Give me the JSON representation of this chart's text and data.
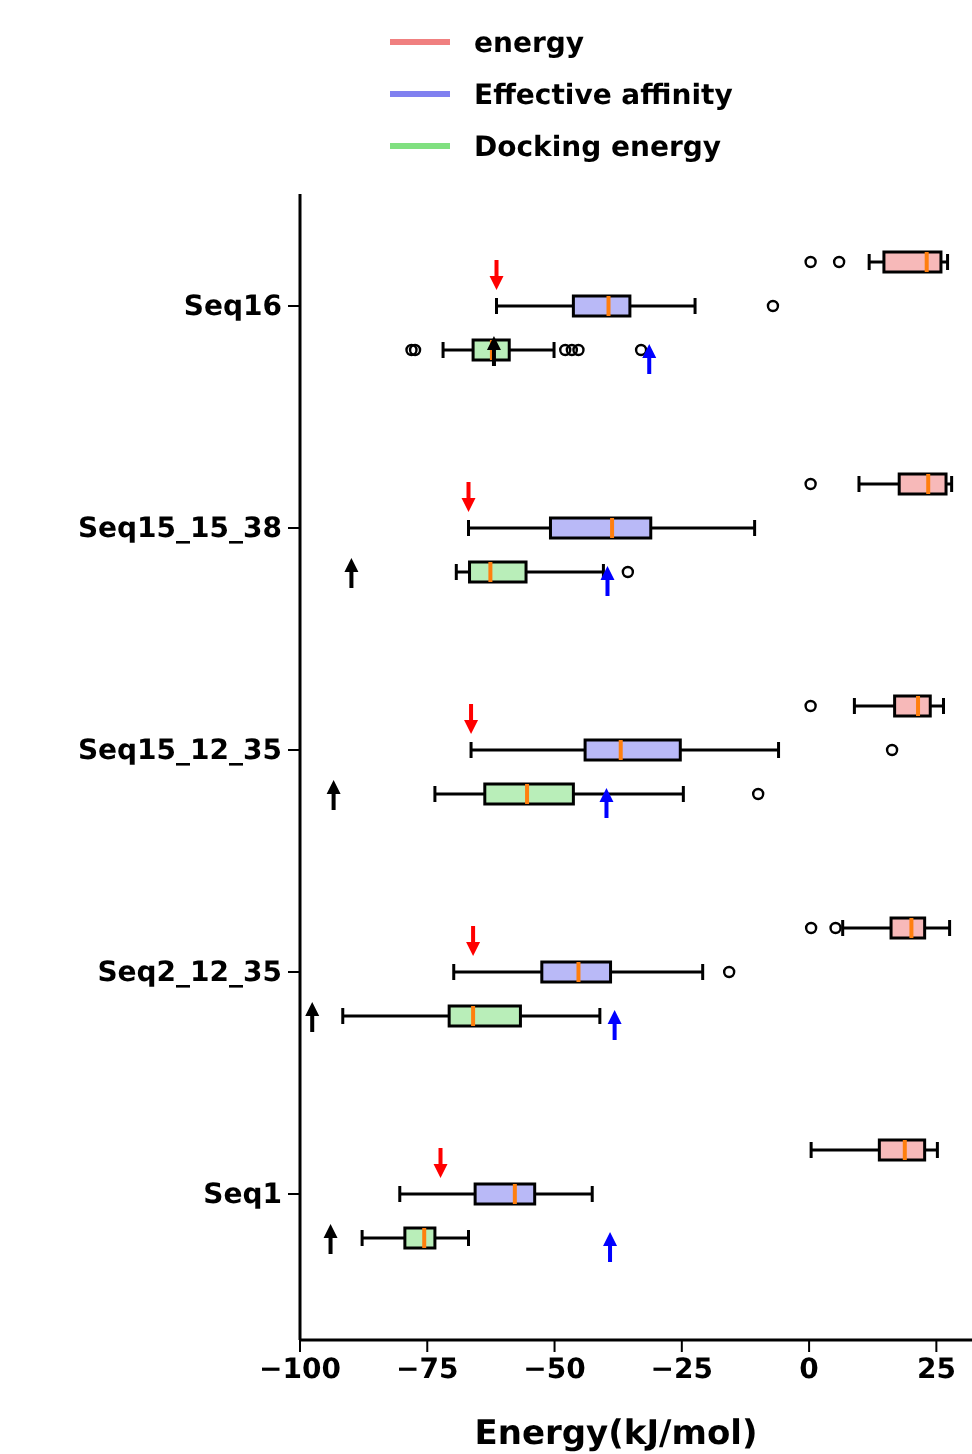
{
  "chart_data": {
    "type": "box",
    "orientation": "horizontal",
    "xlabel": "Energy(kJ/mol)",
    "categories": [
      "Seq16",
      "Seq15_15_38",
      "Seq15_12_35",
      "Seq2_12_35",
      "Seq1"
    ],
    "xlim": [
      -100,
      32
    ],
    "xticks": [
      {
        "value": -100,
        "label": "−100"
      },
      {
        "value": -75,
        "label": "−75"
      },
      {
        "value": -50,
        "label": "−50"
      },
      {
        "value": -25,
        "label": "−25"
      },
      0,
      25
    ],
    "legend": "top",
    "grid": false,
    "series": [
      {
        "name": "energy",
        "color": "#f08080",
        "boxes": [
          {
            "low": 11.8,
            "q1": 14.7,
            "median": 23.1,
            "q3": 25.9,
            "high": 27.2,
            "outliers": [
              0.3,
              5.9
            ]
          },
          {
            "low": 9.8,
            "q1": 17.7,
            "median": 23.4,
            "q3": 26.9,
            "high": 28.0,
            "outliers": [
              0.3
            ]
          },
          {
            "low": 8.9,
            "q1": 16.8,
            "median": 21.4,
            "q3": 23.8,
            "high": 26.4,
            "outliers": [
              0.3
            ]
          },
          {
            "low": 6.6,
            "q1": 16.1,
            "median": 20.1,
            "q3": 22.7,
            "high": 27.6,
            "outliers": [
              0.4,
              5.2
            ]
          },
          {
            "low": 0.4,
            "q1": 13.8,
            "median": 18.8,
            "q3": 22.7,
            "high": 25.2
          }
        ]
      },
      {
        "name": "Effective affinity",
        "color": "#8080f0",
        "boxes": [
          {
            "low": -61.4,
            "q1": -46.3,
            "median": -39.4,
            "q3": -35.2,
            "high": -22.4,
            "outliers": [
              -7.1
            ]
          },
          {
            "low": -66.9,
            "q1": -50.8,
            "median": -38.7,
            "q3": -31.1,
            "high": -10.7
          },
          {
            "low": -66.4,
            "q1": -44.0,
            "median": -37.0,
            "q3": -25.3,
            "high": -6.0,
            "outliers": [
              16.3
            ]
          },
          {
            "low": -69.8,
            "q1": -52.5,
            "median": -45.3,
            "q3": -39.0,
            "high": -20.9,
            "outliers": [
              -15.7
            ]
          },
          {
            "low": -80.4,
            "q1": -65.6,
            "median": -57.8,
            "q3": -53.9,
            "high": -42.6
          }
        ]
      },
      {
        "name": "Docking energy",
        "color": "#80e080",
        "boxes": [
          {
            "low": -71.9,
            "q1": -66.0,
            "median": -62.3,
            "q3": -58.9,
            "high": -50.1,
            "outliers": [
              -78.1,
              -77.4,
              -47.9,
              -46.6,
              -45.3,
              -33.0
            ]
          },
          {
            "low": -69.3,
            "q1": -66.7,
            "median": -62.6,
            "q3": -55.6,
            "high": -40.4,
            "outliers": [
              -35.6
            ]
          },
          {
            "low": -73.5,
            "q1": -63.7,
            "median": -55.4,
            "q3": -46.3,
            "high": -24.7,
            "outliers": [
              -10.0
            ]
          },
          {
            "low": -91.6,
            "q1": -70.7,
            "median": -66.0,
            "q3": -56.7,
            "high": -41.1
          },
          {
            "low": -87.8,
            "q1": -79.4,
            "median": -75.6,
            "q3": -73.5,
            "high": -66.9
          }
        ]
      },
      {
        "type": "scatter",
        "marker": "triangle",
        "color": "#ff0000",
        "x": [
          "Seq16",
          "Seq15_15_38",
          "Seq15_12_35",
          "Seq2_12_35",
          "Seq1"
        ],
        "values": [
          -61.4,
          -66.9,
          -66.4,
          -66.0,
          -72.4
        ]
      },
      {
        "type": "scatter",
        "marker": "triangle",
        "color": "#0000ff",
        "x": [
          "Seq16",
          "Seq15_15_38",
          "Seq15_12_35",
          "Seq2_12_35",
          "Seq1"
        ],
        "values": [
          -31.4,
          -39.6,
          -39.8,
          -38.2,
          -39.1
        ]
      },
      {
        "type": "scatter",
        "marker": "triangle",
        "color": "#000000",
        "x": [
          "Seq16",
          "Seq15_15_38",
          "Seq15_12_35",
          "Seq2_12_35",
          "Seq1"
        ],
        "values": [
          -61.9,
          -89.9,
          -93.4,
          -97.6,
          -94.0
        ]
      }
    ]
  }
}
